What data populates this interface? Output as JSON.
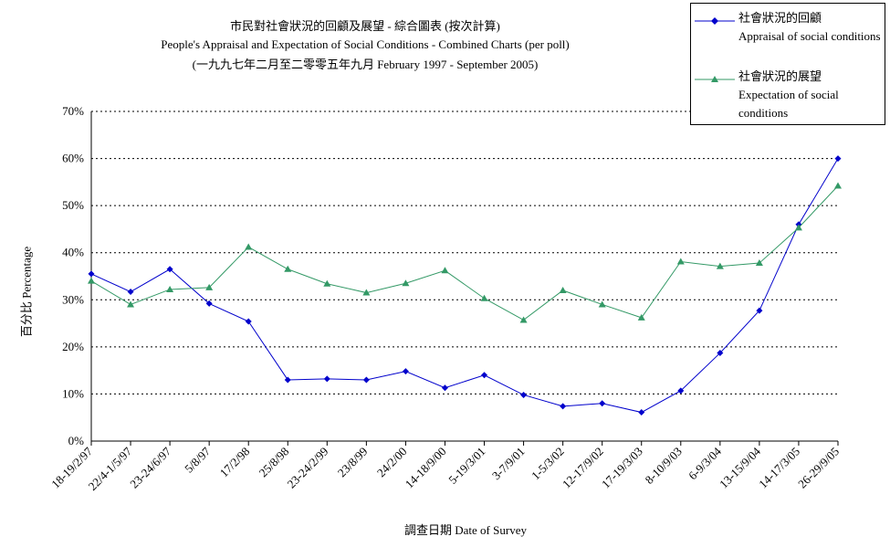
{
  "chart_data": {
    "type": "line",
    "title": "市民對社會狀況的回顧及展望 - 綜合圖表 (按次計算)",
    "subtitle": "People's Appraisal and Expectation of Social Conditions - Combined Charts  (per poll)",
    "subtitle2": "(一九九七年二月至二零零五年九月 February 1997 - September 2005)",
    "xlabel": "調查日期 Date of Survey",
    "ylabel": "百分比 Percentage",
    "ylim": [
      0,
      70
    ],
    "yticks": [
      "0%",
      "10%",
      "20%",
      "30%",
      "40%",
      "50%",
      "60%",
      "70%"
    ],
    "grid": "horizontal-dotted",
    "legend_position": "top-right",
    "categories": [
      "18-19/2/97",
      "22/4-1/5/97",
      "23-24/6/97",
      "5/8/97",
      "17/2/98",
      "25/8/98",
      "23-24/2/99",
      "23/8/99",
      "24/2/00",
      "14-18/9/00",
      "5-19/3/01",
      "3-7/9/01",
      "1-5/3/02",
      "12-17/9/02",
      "17-19/3/03",
      "8-10/9/03",
      "6-9/3/04",
      "13-15/9/04",
      "14-17/3/05",
      "26-29/9/05"
    ],
    "series": [
      {
        "name": "社會狀況的回顧",
        "name_en": "Appraisal of social conditions",
        "color": "#0000cc",
        "marker": "diamond",
        "values": [
          35.5,
          31.7,
          36.5,
          29.2,
          25.4,
          13.0,
          13.2,
          13.0,
          14.8,
          11.3,
          14.0,
          9.8,
          7.4,
          8.0,
          6.1,
          10.7,
          18.7,
          27.7,
          46.0,
          60.0
        ]
      },
      {
        "name": "社會狀況的展望",
        "name_en": "Expectation of social conditions",
        "color": "#339966",
        "marker": "triangle",
        "values": [
          34.0,
          29.0,
          32.2,
          32.6,
          41.2,
          36.5,
          33.4,
          31.5,
          33.5,
          36.2,
          30.3,
          25.7,
          32.0,
          29.0,
          26.2,
          38.1,
          37.1,
          37.8,
          45.3,
          54.2
        ]
      }
    ]
  }
}
